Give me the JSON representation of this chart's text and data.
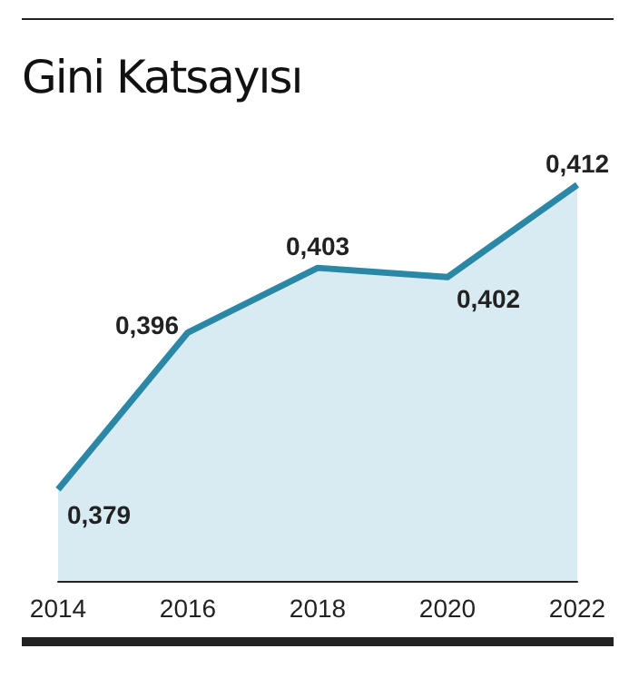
{
  "chart_data": {
    "type": "area",
    "title": "Gini Katsayısı",
    "categories": [
      "2014",
      "2016",
      "2018",
      "2020",
      "2022"
    ],
    "series": [
      {
        "color": "#2b87a6",
        "values": [
          0.379,
          0.396,
          0.403,
          0.402,
          0.412
        ],
        "value_labels": [
          "0,379",
          "0,396",
          "0,403",
          "0,402",
          "0,412"
        ]
      }
    ],
    "tick_labels": "x"
  }
}
